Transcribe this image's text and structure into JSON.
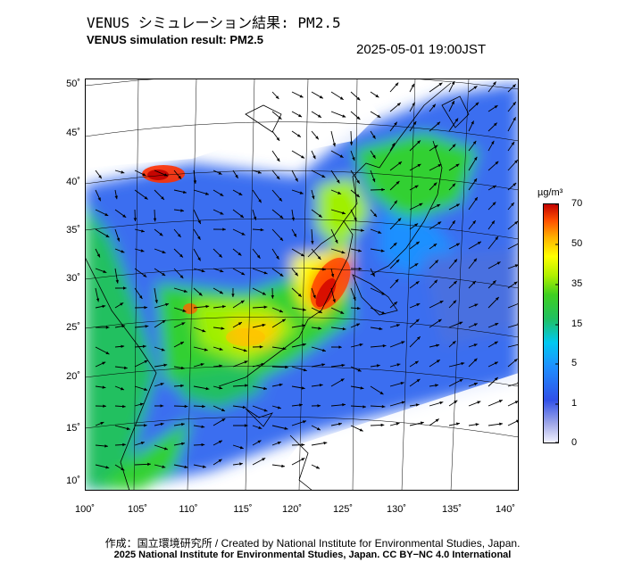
{
  "title_ja": "VENUS シミュレーション結果: PM2.5",
  "title_en": "VENUS simulation result: PM2.5",
  "timestamp": "2025-05-01 19:00JST",
  "lat_labels": [
    "50˚",
    "45˚",
    "40˚",
    "35˚",
    "30˚",
    "25˚",
    "20˚",
    "15˚",
    "10˚"
  ],
  "lon_labels": [
    "100˚",
    "105˚",
    "110˚",
    "115˚",
    "120˚",
    "125˚",
    "130˚",
    "135˚",
    "140˚"
  ],
  "colorbar": {
    "unit": "µg/m³",
    "ticks": [
      "70",
      "50",
      "35",
      "15",
      "5",
      "1",
      "0"
    ],
    "colors": [
      "#f0f0ff",
      "#8890e0",
      "#3050e8",
      "#1e90ff",
      "#00d0ff",
      "#20c060",
      "#30d030",
      "#a0f000",
      "#ffff00",
      "#ffc000",
      "#ff7000",
      "#ff1000",
      "#c00000"
    ]
  },
  "credit_line_1": "作成：国立環境研究所 / Created by National Institute for Environmental Studies, Japan.",
  "credit_line_2": "2025 National Institute for Environmental Studies, Japan. CC BY−NC 4.0 International"
}
